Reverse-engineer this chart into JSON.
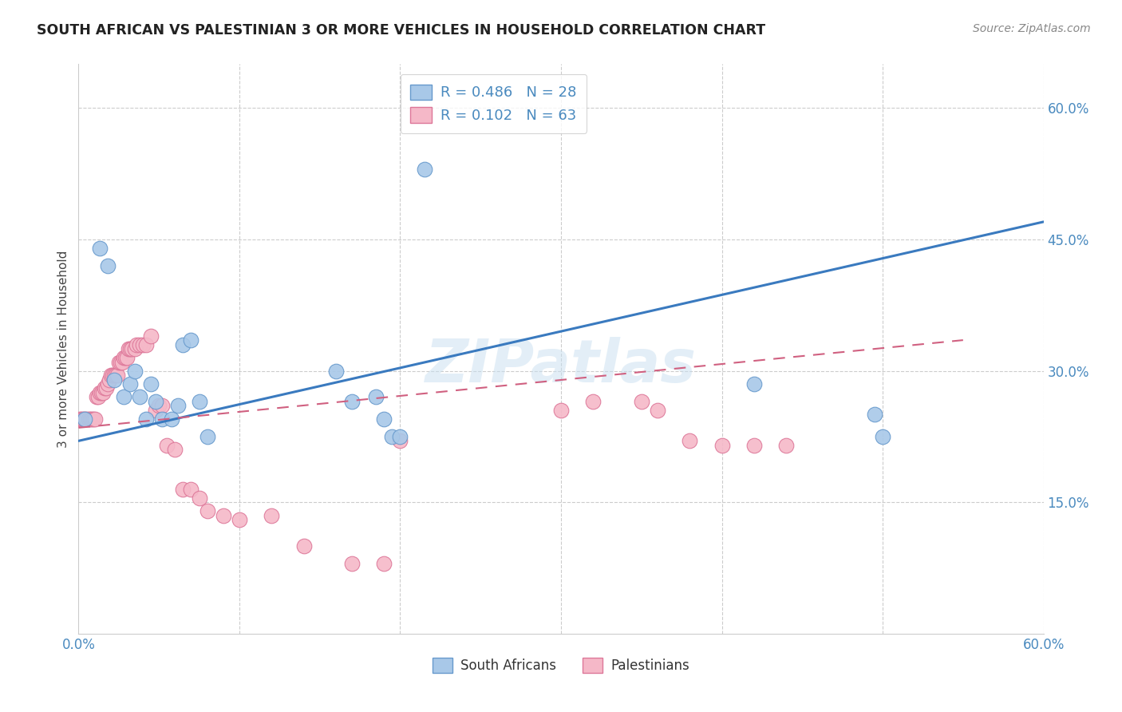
{
  "title": "SOUTH AFRICAN VS PALESTINIAN 3 OR MORE VEHICLES IN HOUSEHOLD CORRELATION CHART",
  "source": "Source: ZipAtlas.com",
  "ylabel": "3 or more Vehicles in Household",
  "watermark": "ZIPatlas",
  "xlim": [
    0.0,
    0.6
  ],
  "ylim": [
    0.0,
    0.65
  ],
  "south_african_color": "#a8c8e8",
  "south_african_edge": "#6699cc",
  "palestinian_color": "#f5b8c8",
  "palestinian_edge": "#dd7799",
  "R_south_african": 0.486,
  "N_south_african": 28,
  "R_palestinian": 0.102,
  "N_palestinian": 63,
  "south_african_x": [
    0.004,
    0.013,
    0.018,
    0.022,
    0.028,
    0.032,
    0.035,
    0.038,
    0.042,
    0.045,
    0.048,
    0.052,
    0.058,
    0.062,
    0.065,
    0.07,
    0.075,
    0.08,
    0.16,
    0.17,
    0.185,
    0.19,
    0.195,
    0.2,
    0.215,
    0.42,
    0.495,
    0.5
  ],
  "south_african_y": [
    0.245,
    0.44,
    0.42,
    0.29,
    0.27,
    0.285,
    0.3,
    0.27,
    0.245,
    0.285,
    0.265,
    0.245,
    0.245,
    0.26,
    0.33,
    0.335,
    0.265,
    0.225,
    0.3,
    0.265,
    0.27,
    0.245,
    0.225,
    0.225,
    0.53,
    0.285,
    0.25,
    0.225
  ],
  "palestinian_x": [
    0.001,
    0.002,
    0.003,
    0.004,
    0.005,
    0.006,
    0.007,
    0.008,
    0.009,
    0.01,
    0.011,
    0.012,
    0.013,
    0.014,
    0.015,
    0.016,
    0.017,
    0.018,
    0.019,
    0.02,
    0.021,
    0.022,
    0.023,
    0.024,
    0.025,
    0.026,
    0.027,
    0.028,
    0.029,
    0.03,
    0.031,
    0.032,
    0.033,
    0.035,
    0.036,
    0.038,
    0.04,
    0.042,
    0.045,
    0.048,
    0.05,
    0.052,
    0.055,
    0.06,
    0.065,
    0.07,
    0.075,
    0.08,
    0.09,
    0.1,
    0.12,
    0.14,
    0.17,
    0.19,
    0.2,
    0.3,
    0.32,
    0.35,
    0.36,
    0.38,
    0.4,
    0.42,
    0.44
  ],
  "palestinian_y": [
    0.245,
    0.245,
    0.245,
    0.245,
    0.245,
    0.245,
    0.245,
    0.245,
    0.245,
    0.245,
    0.27,
    0.27,
    0.275,
    0.275,
    0.275,
    0.28,
    0.28,
    0.285,
    0.29,
    0.295,
    0.295,
    0.295,
    0.295,
    0.295,
    0.31,
    0.31,
    0.31,
    0.315,
    0.315,
    0.315,
    0.325,
    0.325,
    0.325,
    0.325,
    0.33,
    0.33,
    0.33,
    0.33,
    0.34,
    0.255,
    0.26,
    0.26,
    0.215,
    0.21,
    0.165,
    0.165,
    0.155,
    0.14,
    0.135,
    0.13,
    0.135,
    0.1,
    0.08,
    0.08,
    0.22,
    0.255,
    0.265,
    0.265,
    0.255,
    0.22,
    0.215,
    0.215,
    0.215
  ],
  "sa_trendline_x": [
    0.0,
    0.6
  ],
  "sa_trendline_y": [
    0.22,
    0.47
  ],
  "pal_trendline_x": [
    0.0,
    0.55
  ],
  "pal_trendline_y": [
    0.235,
    0.335
  ],
  "legend_sa_label": "R = 0.486   N = 28",
  "legend_pal_label": "R = 0.102   N = 63",
  "bottom_legend_sa": "South Africans",
  "bottom_legend_pal": "Palestinians"
}
